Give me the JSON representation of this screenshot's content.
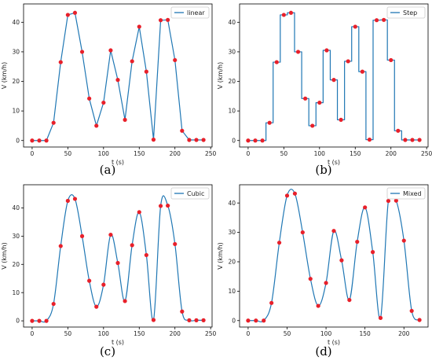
{
  "chart_data": [
    {
      "panel": "(a)",
      "type": "line",
      "legend": "linear",
      "interpolation": "linear",
      "xlabel": "t (s)",
      "ylabel": "V (km/h)",
      "xlim": [
        -12,
        252
      ],
      "ylim": [
        -2.2,
        46.2
      ],
      "xticks": [
        0,
        50,
        100,
        150,
        200,
        250
      ],
      "yticks": [
        0,
        10,
        20,
        30,
        40
      ],
      "points": [
        [
          0,
          0
        ],
        [
          10,
          0
        ],
        [
          20,
          0
        ],
        [
          30,
          6
        ],
        [
          40,
          26.5
        ],
        [
          50,
          42.5
        ],
        [
          60,
          43.2
        ],
        [
          70,
          30
        ],
        [
          80,
          14.2
        ],
        [
          90,
          5
        ],
        [
          100,
          12.8
        ],
        [
          110,
          30.5
        ],
        [
          120,
          20.5
        ],
        [
          130,
          7
        ],
        [
          140,
          26.8
        ],
        [
          150,
          38.5
        ],
        [
          160,
          23.3
        ],
        [
          170,
          0.3
        ],
        [
          180,
          40.7
        ],
        [
          190,
          40.8
        ],
        [
          200,
          27.2
        ],
        [
          210,
          3.3
        ],
        [
          220,
          0.2
        ],
        [
          230,
          0.2
        ],
        [
          240,
          0.2
        ]
      ],
      "line_color": "#1f77b4",
      "marker_color": "#e8202a"
    },
    {
      "panel": "(b)",
      "type": "line",
      "legend": "Step",
      "interpolation": "step-mid",
      "xlabel": "t (s)",
      "ylabel": "V (km/h)",
      "xlim": [
        -12,
        252
      ],
      "ylim": [
        -2.2,
        46.2
      ],
      "xticks": [
        0,
        50,
        100,
        150,
        200,
        250
      ],
      "yticks": [
        0,
        10,
        20,
        30,
        40
      ],
      "points": [
        [
          0,
          0
        ],
        [
          10,
          0
        ],
        [
          20,
          0
        ],
        [
          30,
          6
        ],
        [
          40,
          26.5
        ],
        [
          50,
          42.5
        ],
        [
          60,
          43.2
        ],
        [
          70,
          30
        ],
        [
          80,
          14.2
        ],
        [
          90,
          5
        ],
        [
          100,
          12.8
        ],
        [
          110,
          30.5
        ],
        [
          120,
          20.5
        ],
        [
          130,
          7
        ],
        [
          140,
          26.8
        ],
        [
          150,
          38.5
        ],
        [
          160,
          23.3
        ],
        [
          170,
          0.3
        ],
        [
          180,
          40.7
        ],
        [
          190,
          40.8
        ],
        [
          200,
          27.2
        ],
        [
          210,
          3.3
        ],
        [
          220,
          0.2
        ],
        [
          230,
          0.2
        ],
        [
          240,
          0.2
        ]
      ],
      "line_color": "#1f77b4",
      "marker_color": "#e8202a"
    },
    {
      "panel": "(c)",
      "type": "line",
      "legend": "Cubic",
      "interpolation": "cubic",
      "xlabel": "t (s)",
      "ylabel": "V (km/h)",
      "xlim": [
        -12,
        252
      ],
      "ylim": [
        -2.2,
        48.2
      ],
      "xticks": [
        0,
        50,
        100,
        150,
        200,
        250
      ],
      "yticks": [
        0,
        10,
        20,
        30,
        40
      ],
      "points": [
        [
          0,
          0
        ],
        [
          10,
          0
        ],
        [
          20,
          0
        ],
        [
          30,
          6
        ],
        [
          40,
          26.5
        ],
        [
          50,
          42.5
        ],
        [
          60,
          43.2
        ],
        [
          70,
          30
        ],
        [
          80,
          14.2
        ],
        [
          90,
          5
        ],
        [
          100,
          12.8
        ],
        [
          110,
          30.5
        ],
        [
          120,
          20.5
        ],
        [
          130,
          7
        ],
        [
          140,
          26.8
        ],
        [
          150,
          38.5
        ],
        [
          160,
          23.3
        ],
        [
          170,
          0.3
        ],
        [
          180,
          40.7
        ],
        [
          190,
          40.8
        ],
        [
          200,
          27.2
        ],
        [
          210,
          3.3
        ],
        [
          220,
          0.2
        ],
        [
          230,
          0.2
        ],
        [
          240,
          0.2
        ]
      ],
      "line_color": "#1f77b4",
      "marker_color": "#e8202a"
    },
    {
      "panel": "(d)",
      "type": "line",
      "legend": "Mixed",
      "interpolation": "cubic",
      "xlabel": "t (s)",
      "ylabel": "V (km/h)",
      "xlim": [
        -11,
        231
      ],
      "ylim": [
        -2.2,
        46.2
      ],
      "xticks": [
        0,
        50,
        100,
        150,
        200
      ],
      "yticks": [
        0,
        10,
        20,
        30,
        40
      ],
      "points": [
        [
          0,
          0
        ],
        [
          10,
          0
        ],
        [
          20,
          0
        ],
        [
          30,
          6
        ],
        [
          40,
          26.5
        ],
        [
          50,
          42.5
        ],
        [
          60,
          43.2
        ],
        [
          70,
          30
        ],
        [
          80,
          14.2
        ],
        [
          90,
          5
        ],
        [
          100,
          12.8
        ],
        [
          110,
          30.5
        ],
        [
          120,
          20.5
        ],
        [
          130,
          7
        ],
        [
          140,
          26.8
        ],
        [
          150,
          38.5
        ],
        [
          160,
          23.3
        ],
        [
          170,
          0.9
        ],
        [
          180,
          40.7
        ],
        [
          190,
          40.8
        ],
        [
          200,
          27.2
        ],
        [
          210,
          3.3
        ],
        [
          220,
          0.2
        ]
      ],
      "line_color": "#1f77b4",
      "marker_color": "#e8202a"
    }
  ]
}
